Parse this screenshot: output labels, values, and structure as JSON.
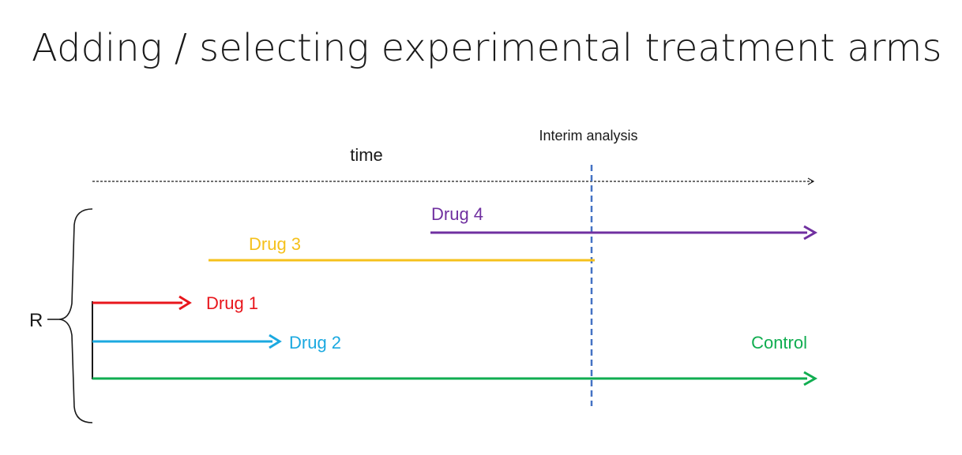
{
  "title": "Adding / selecting experimental treatment arms",
  "diagram": {
    "time_label": "time",
    "interim_label": "Interim analysis",
    "randomization_label": "R",
    "arms": [
      {
        "id": "drug4",
        "label": "Drug 4",
        "color": "#7030a0",
        "ends": "trial end"
      },
      {
        "id": "drug3",
        "label": "Drug 3",
        "color": "#f5c11c",
        "ends": "interim analysis"
      },
      {
        "id": "drug1",
        "label": "Drug 1",
        "color": "#e8161c"
      },
      {
        "id": "drug2",
        "label": "Drug 2",
        "color": "#1ba9e0"
      },
      {
        "id": "control",
        "label": "Control",
        "color": "#10ad50",
        "ends": "trial end"
      }
    ],
    "colors": {
      "axis": "#1a1a1a",
      "interim_line": "#4472c4",
      "text": "#1a1a1a"
    }
  }
}
